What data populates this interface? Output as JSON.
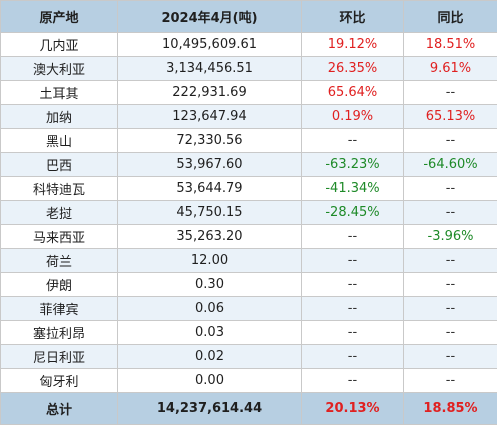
{
  "headers": [
    "原产地",
    "2024年4月(吨)",
    "环比",
    "同比"
  ],
  "rows": [
    {
      "origin": "几内亚",
      "tons": "10,495,609.61",
      "mom": "19.12%",
      "mom_sign": "pos",
      "yoy": "18.51%",
      "yoy_sign": "pos"
    },
    {
      "origin": "澳大利亚",
      "tons": "3,134,456.51",
      "mom": "26.35%",
      "mom_sign": "pos",
      "yoy": "9.61%",
      "yoy_sign": "pos"
    },
    {
      "origin": "土耳其",
      "tons": "222,931.69",
      "mom": "65.64%",
      "mom_sign": "pos",
      "yoy": "--",
      "yoy_sign": "nil"
    },
    {
      "origin": "加纳",
      "tons": "123,647.94",
      "mom": "0.19%",
      "mom_sign": "pos",
      "yoy": "65.13%",
      "yoy_sign": "pos"
    },
    {
      "origin": "黑山",
      "tons": "72,330.56",
      "mom": "--",
      "mom_sign": "nil",
      "yoy": "--",
      "yoy_sign": "nil"
    },
    {
      "origin": "巴西",
      "tons": "53,967.60",
      "mom": "-63.23%",
      "mom_sign": "neg",
      "yoy": "-64.60%",
      "yoy_sign": "neg"
    },
    {
      "origin": "科特迪瓦",
      "tons": "53,644.79",
      "mom": "-41.34%",
      "mom_sign": "neg",
      "yoy": "--",
      "yoy_sign": "nil"
    },
    {
      "origin": "老挝",
      "tons": "45,750.15",
      "mom": "-28.45%",
      "mom_sign": "neg",
      "yoy": "--",
      "yoy_sign": "nil"
    },
    {
      "origin": "马来西亚",
      "tons": "35,263.20",
      "mom": "--",
      "mom_sign": "nil",
      "yoy": "-3.96%",
      "yoy_sign": "neg"
    },
    {
      "origin": "荷兰",
      "tons": "12.00",
      "mom": "--",
      "mom_sign": "nil",
      "yoy": "--",
      "yoy_sign": "nil"
    },
    {
      "origin": "伊朗",
      "tons": "0.30",
      "mom": "--",
      "mom_sign": "nil",
      "yoy": "--",
      "yoy_sign": "nil"
    },
    {
      "origin": "菲律宾",
      "tons": "0.06",
      "mom": "--",
      "mom_sign": "nil",
      "yoy": "--",
      "yoy_sign": "nil"
    },
    {
      "origin": "塞拉利昂",
      "tons": "0.03",
      "mom": "--",
      "mom_sign": "nil",
      "yoy": "--",
      "yoy_sign": "nil"
    },
    {
      "origin": "尼日利亚",
      "tons": "0.02",
      "mom": "--",
      "mom_sign": "nil",
      "yoy": "--",
      "yoy_sign": "nil"
    },
    {
      "origin": "匈牙利",
      "tons": "0.00",
      "mom": "--",
      "mom_sign": "nil",
      "yoy": "--",
      "yoy_sign": "nil"
    }
  ],
  "total": {
    "origin": "总计",
    "tons": "14,237,614.44",
    "mom": "20.13%",
    "mom_sign": "pos",
    "yoy": "18.85%",
    "yoy_sign": "pos"
  },
  "colors": {
    "header_bg": "#b7cfe2",
    "alt_row_bg": "#eaf2f9",
    "positive": "#e02020",
    "negative": "#1e8a28",
    "border": "#c9c9c9"
  }
}
